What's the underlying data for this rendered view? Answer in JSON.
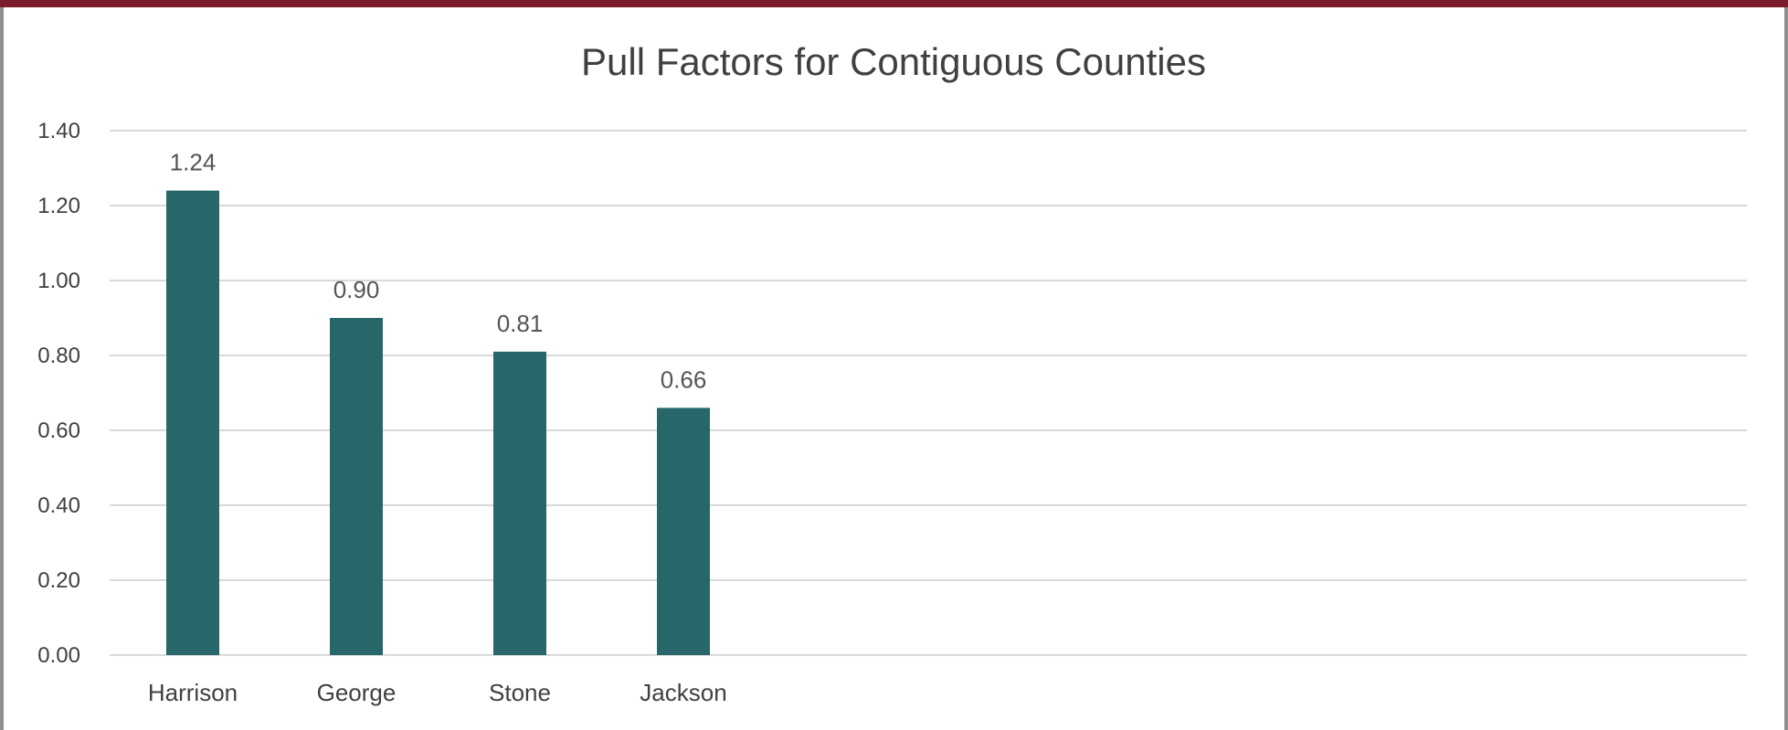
{
  "chart_data": {
    "type": "bar",
    "title": "Pull Factors for Contiguous Counties",
    "categories": [
      "Harrison",
      "George",
      "Stone",
      "Jackson"
    ],
    "values": [
      1.24,
      0.9,
      0.81,
      0.66
    ],
    "data_labels": [
      "1.24",
      "0.90",
      "0.81",
      "0.66"
    ],
    "yticks": [
      "0.00",
      "0.20",
      "0.40",
      "0.60",
      "0.80",
      "1.00",
      "1.20",
      "1.40"
    ],
    "ylim": [
      0,
      1.4
    ],
    "xlabel": "",
    "ylabel": "",
    "grid": true,
    "legend": "none",
    "bar_color": "#276769"
  },
  "colors": {
    "accent_bar": "#7a1c2a",
    "frame": "#8f8f8f"
  }
}
